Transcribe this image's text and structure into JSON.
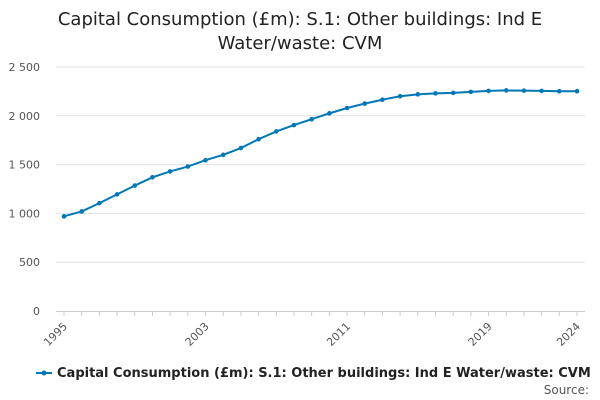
{
  "chart_data": {
    "type": "line",
    "title_lines": [
      "Capital Consumption (£m): S.1: Other buildings: Ind E",
      "Water/waste: CVM"
    ],
    "xlabel": "",
    "ylabel": "",
    "x": [
      1995,
      1996,
      1997,
      1998,
      1999,
      2000,
      2001,
      2002,
      2003,
      2004,
      2005,
      2006,
      2007,
      2008,
      2009,
      2010,
      2011,
      2012,
      2013,
      2014,
      2015,
      2016,
      2017,
      2018,
      2019,
      2020,
      2021,
      2022,
      2023,
      2024
    ],
    "xlim": [
      1995,
      2024
    ],
    "ylim": [
      0,
      2500
    ],
    "x_ticks": [
      1995,
      2003,
      2011,
      2019,
      2024
    ],
    "x_tick_labels": [
      "1995",
      "2003",
      "2011",
      "2019",
      "2024"
    ],
    "y_ticks": [
      0,
      500,
      1000,
      1500,
      2000,
      2500
    ],
    "y_tick_labels": [
      "0",
      "500",
      "1 000",
      "1 500",
      "2 000",
      "2 500"
    ],
    "grid": "horizontal",
    "legend_position": "bottom",
    "series": [
      {
        "name": "Capital Consumption (£m): S.1: Other buildings: Ind E Water/waste: CVM",
        "color": "#0077b6",
        "values": [
          970,
          1020,
          1105,
          1195,
          1285,
          1370,
          1430,
          1480,
          1545,
          1600,
          1670,
          1760,
          1840,
          1905,
          1965,
          2025,
          2080,
          2125,
          2165,
          2200,
          2220,
          2230,
          2235,
          2245,
          2255,
          2260,
          2258,
          2255,
          2252,
          2252
        ]
      }
    ],
    "source_label": "Source:"
  }
}
